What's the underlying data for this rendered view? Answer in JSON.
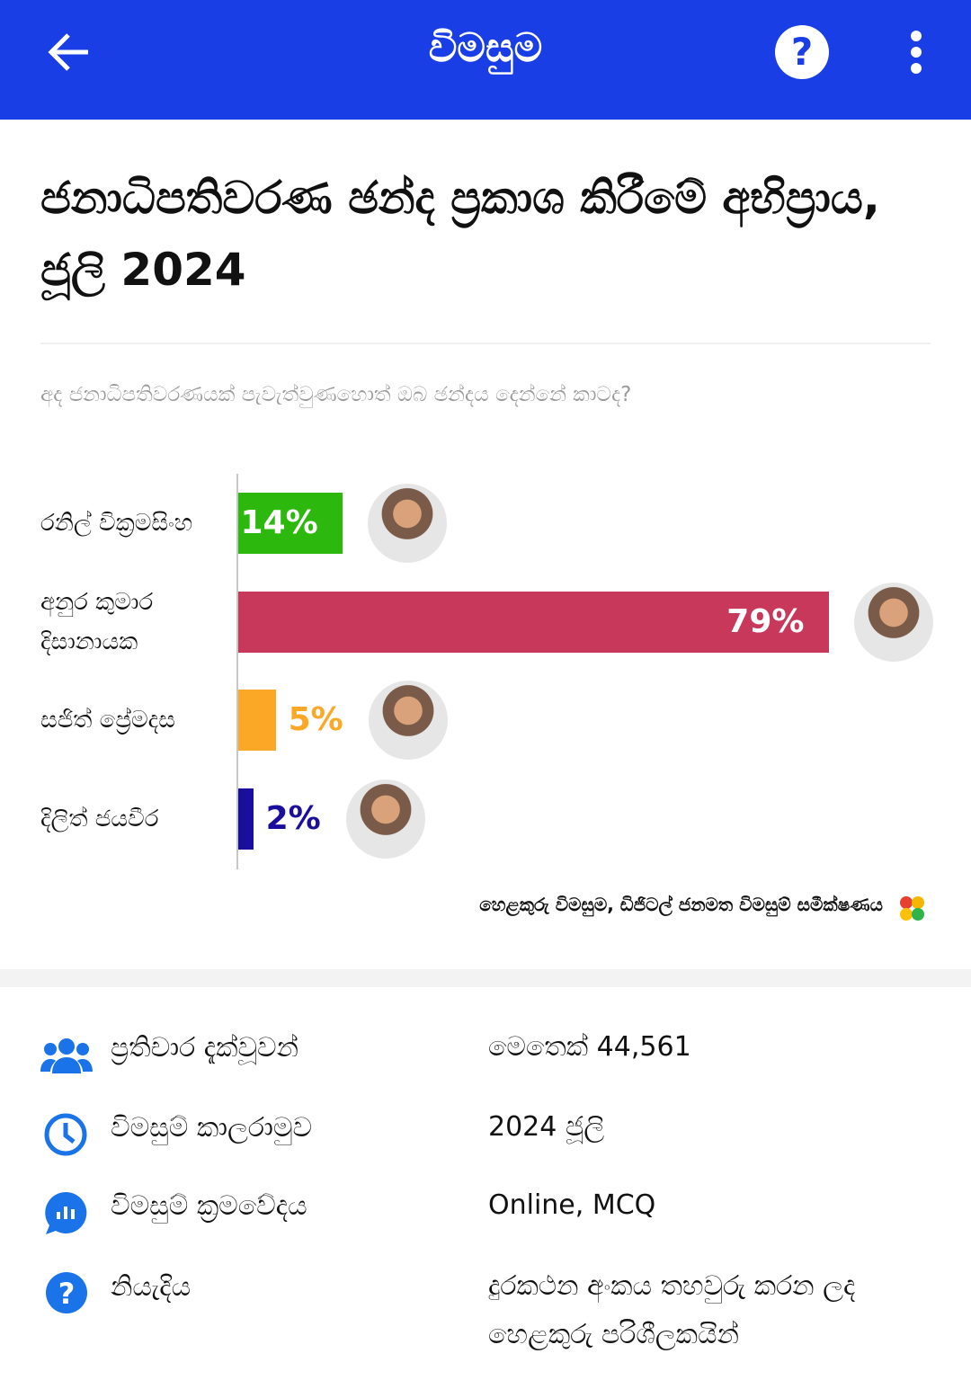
{
  "header": {
    "title": "විමසුම"
  },
  "title": "ජනාධිපතිවරණ ඡන්ද ප්‍රකාශ කිරීමේ අභිප්‍රාය, ජූලි 2024",
  "question": "අද ජනාධිපතිවරණයක් පැවැත්වුණහොත් ඔබ ඡන්දය දෙන්නේ කාටද?",
  "chart_data": {
    "type": "bar",
    "orientation": "horizontal",
    "categories": [
      "රනිල් වික්‍රමසිංහ",
      "අනුර කුමාර දිසානායක",
      "සජිත් ප්‍රේමදස",
      "දිලිත් ජයවීර"
    ],
    "values": [
      14,
      79,
      5,
      2
    ],
    "value_labels": [
      "14%",
      "79%",
      "5%",
      "2%"
    ],
    "colors": [
      "#2cb80d",
      "#c8385a",
      "#fba826",
      "#1a0e9c"
    ]
  },
  "source": "හෙළකුරු විමසුම, ඩිජිටල් ජනමත විමසුම් සමීක්ෂණය",
  "info": [
    {
      "label": "ප්‍රතිචාර දැක්වූවන්",
      "value": "මෙතෙක් 44,561"
    },
    {
      "label": "විමසුම් කාලරාමුව",
      "value": "2024 ජූලි"
    },
    {
      "label": "විමසුම් ක්‍රමවේදය",
      "value": "Online, MCQ"
    },
    {
      "label": "නියැදිය",
      "value": "දුරකථන අංකය තහවුරු කරන ලද හෙළකුරු පරිශීලකයින්"
    }
  ]
}
